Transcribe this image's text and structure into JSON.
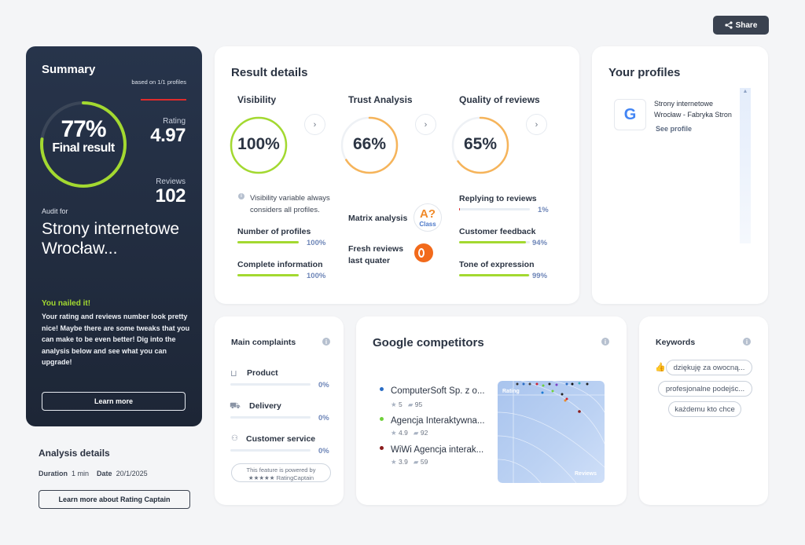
{
  "share_label": "Share",
  "summary": {
    "title": "Summary",
    "based_on": "based on 1/1 profiles",
    "percent": "77%",
    "final_result": "Final result",
    "rating_label": "Rating",
    "rating_value": "4.97",
    "reviews_label": "Reviews",
    "reviews_value": "102",
    "audit_for": "Audit for",
    "audit_name": "Strony internetowe Wrocław...",
    "nailed": "You nailed it!",
    "description": "Your rating and reviews number look pretty nice! Maybe there are some tweaks that you can make to be even better! Dig into the analysis below and see what you can upgrade!",
    "learn_more": "Learn more",
    "ring_fraction": 0.77,
    "ring_color": "#a3d930"
  },
  "analysis": {
    "title": "Analysis details",
    "duration_label": "Duration",
    "duration_value": "1 min",
    "date_label": "Date",
    "date_value": "20/1/2025",
    "button": "Learn more about Rating Captain"
  },
  "result_details": {
    "title": "Result details",
    "visibility": {
      "title": "Visibility",
      "value": "100%",
      "fraction": 1.0,
      "color": "#a3d930"
    },
    "trust": {
      "title": "Trust Analysis",
      "value": "66%",
      "fraction": 0.66,
      "color": "#f6b45a"
    },
    "quality": {
      "title": "Quality of reviews",
      "value": "65%",
      "fraction": 0.65,
      "color": "#f6b45a"
    },
    "visibility_note": "Visibility variable always considers all profiles.",
    "number_of_profiles": {
      "label": "Number of profiles",
      "pct": "100%",
      "fraction": 1.0
    },
    "complete_information": {
      "label": "Complete information",
      "pct": "100%",
      "fraction": 1.0
    },
    "matrix_label": "Matrix analysis",
    "matrix_badge": "A?",
    "matrix_class": "Class",
    "fresh_label": "Fresh reviews last quater",
    "replying": {
      "label": "Replying to reviews",
      "pct": "1%",
      "fraction": 0.01
    },
    "feedback": {
      "label": "Customer feedback",
      "pct": "94%",
      "fraction": 0.94
    },
    "tone": {
      "label": "Tone of expression",
      "pct": "99%",
      "fraction": 0.99
    }
  },
  "profiles": {
    "title": "Your profiles",
    "name": "Strony internetowe Wrocław - Fabryka Stron",
    "see_profile": "See profile"
  },
  "complaints": {
    "title": "Main complaints",
    "items": [
      {
        "label": "Product",
        "pct": "0%"
      },
      {
        "label": "Delivery",
        "pct": "0%"
      },
      {
        "label": "Customer service",
        "pct": "0%"
      }
    ],
    "powered": "This feature is powered by",
    "powered_brand": "★★★★★ RatingCaptain"
  },
  "competitors": {
    "title": "Google competitors",
    "items": [
      {
        "name": "ComputerSoft Sp. z o...",
        "rating": "5",
        "reviews": "95",
        "color": "#2a6cc4"
      },
      {
        "name": "Agencja Interaktywna...",
        "rating": "4.9",
        "reviews": "92",
        "color": "#6fd13a"
      },
      {
        "name": "WiWi Agencja interak...",
        "rating": "3.9",
        "reviews": "59",
        "color": "#8a1c1c"
      }
    ],
    "chart_rating": "Rating",
    "chart_reviews": "Reviews"
  },
  "keywords": {
    "title": "Keywords",
    "items": [
      "dziękuję za owocną...",
      "profesjonalne podejśc...",
      "każdemu kto chce"
    ]
  }
}
